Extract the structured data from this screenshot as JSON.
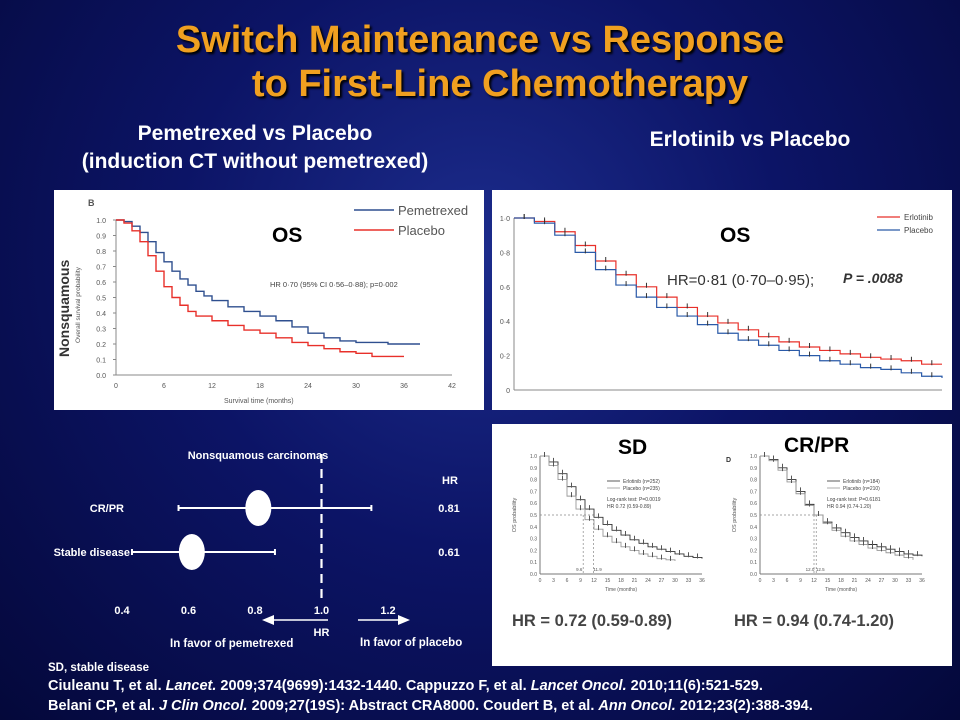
{
  "title": {
    "line1": "Switch Maintenance vs Response",
    "line2": "to First-Line Chemotherapy"
  },
  "left_subtitle": {
    "line1": "Pemetrexed vs Placebo",
    "line2": "(induction CT without pemetrexed)"
  },
  "right_subtitle": "Erlotinib vs Placebo",
  "colors": {
    "title": "#f0a020",
    "pemetrexed": "#2f4f8f",
    "placebo_red": "#e8302a",
    "erlotinib": "#e8302a",
    "placebo_blue": "#2a5aa8"
  },
  "chart_data": [
    {
      "id": "pemetrexed_os",
      "type": "line",
      "panel_label": "B",
      "label": "OS",
      "side_label": "Nonsquamous",
      "ylabel": "Overall survival probability",
      "xlabel": "Survival time (months)",
      "xlim": [
        0,
        42
      ],
      "ylim": [
        0,
        1.0
      ],
      "xticks": [
        0,
        6,
        12,
        18,
        24,
        30,
        36,
        42
      ],
      "yticks": [
        0,
        0.1,
        0.2,
        0.3,
        0.4,
        0.5,
        0.6,
        0.7,
        0.8,
        0.9,
        1.0
      ],
      "legend": [
        "Pemetrexed",
        "Placebo"
      ],
      "annotation": "HR 0·70 (95% CI 0·56–0·88); p=0·002",
      "series": [
        {
          "name": "Pemetrexed",
          "color": "#2f4f8f",
          "x": [
            0,
            1,
            2,
            3,
            4,
            5,
            6,
            7,
            8,
            9,
            10,
            11,
            12,
            14,
            16,
            18,
            20,
            22,
            24,
            26,
            28,
            30,
            32,
            34,
            36,
            38
          ],
          "y": [
            1.0,
            0.99,
            0.96,
            0.92,
            0.86,
            0.79,
            0.73,
            0.67,
            0.62,
            0.58,
            0.54,
            0.51,
            0.48,
            0.44,
            0.41,
            0.38,
            0.35,
            0.31,
            0.27,
            0.24,
            0.22,
            0.21,
            0.21,
            0.2,
            0.2,
            0.2
          ]
        },
        {
          "name": "Placebo",
          "color": "#e8302a",
          "x": [
            0,
            1,
            2,
            3,
            4,
            5,
            6,
            7,
            8,
            9,
            10,
            12,
            14,
            16,
            18,
            20,
            22,
            24,
            26,
            28,
            30,
            32,
            34,
            36
          ],
          "y": [
            1.0,
            0.98,
            0.93,
            0.86,
            0.77,
            0.67,
            0.57,
            0.5,
            0.45,
            0.41,
            0.38,
            0.35,
            0.32,
            0.29,
            0.27,
            0.24,
            0.21,
            0.19,
            0.17,
            0.15,
            0.14,
            0.12,
            0.12,
            0.12
          ]
        }
      ]
    },
    {
      "id": "erlotinib_os",
      "type": "line",
      "label": "OS",
      "xlim": [
        0,
        42
      ],
      "ylim": [
        0,
        1.0
      ],
      "yticks": [
        "0",
        "0·2",
        "0·4",
        "0·6",
        "0·8",
        "1·0"
      ],
      "legend": [
        "Erlotinib",
        "Placebo"
      ],
      "annotation": "HR=0·81 (0·70–0·95);",
      "p_value": "P = .0088",
      "series": [
        {
          "name": "Erlotinib",
          "color": "#e8302a",
          "x": [
            0,
            2,
            4,
            6,
            8,
            10,
            12,
            14,
            16,
            18,
            20,
            22,
            24,
            26,
            28,
            30,
            32,
            34,
            36,
            38,
            40,
            42
          ],
          "y": [
            1.0,
            0.98,
            0.92,
            0.84,
            0.75,
            0.67,
            0.6,
            0.54,
            0.48,
            0.43,
            0.39,
            0.35,
            0.31,
            0.28,
            0.25,
            0.23,
            0.21,
            0.19,
            0.18,
            0.17,
            0.15,
            0.15
          ]
        },
        {
          "name": "Placebo",
          "color": "#2a5aa8",
          "x": [
            0,
            2,
            4,
            6,
            8,
            10,
            12,
            14,
            16,
            18,
            20,
            22,
            24,
            26,
            28,
            30,
            32,
            34,
            36,
            38,
            40,
            42
          ],
          "y": [
            1.0,
            0.97,
            0.9,
            0.8,
            0.7,
            0.61,
            0.54,
            0.48,
            0.43,
            0.38,
            0.33,
            0.29,
            0.26,
            0.23,
            0.2,
            0.17,
            0.15,
            0.13,
            0.12,
            0.1,
            0.08,
            0.07
          ]
        }
      ]
    },
    {
      "id": "sd_os",
      "type": "line",
      "label": "SD",
      "ylabel": "OS probability",
      "xlabel": "Time (months)",
      "xlim": [
        0,
        36
      ],
      "ylim": [
        0,
        1.0
      ],
      "xticks": [
        0,
        3,
        6,
        9,
        12,
        15,
        18,
        21,
        24,
        27,
        30,
        33,
        36
      ],
      "yticks": [
        "0.0",
        "0.1",
        "0.2",
        "0.3",
        "0.4",
        "0.5",
        "0.6",
        "0.7",
        "0.8",
        "0.9",
        "1.0"
      ],
      "legend": [
        "Erlotinib (n=252)",
        "Placebo (n=235)"
      ],
      "test_text": [
        "Log-rank test: P=0.0019",
        "HR 0.72 (0.59-0.89)"
      ],
      "medians": [
        "9.6",
        "11.9"
      ],
      "hr_text": "HR = 0.72 (0.59-0.89)",
      "series": [
        {
          "name": "Erlotinib (n=252)",
          "color": "#333333",
          "x": [
            0,
            2,
            4,
            6,
            8,
            10,
            12,
            14,
            16,
            18,
            20,
            22,
            24,
            26,
            28,
            30,
            32,
            34,
            36
          ],
          "y": [
            1.0,
            0.95,
            0.85,
            0.74,
            0.63,
            0.55,
            0.48,
            0.42,
            0.37,
            0.33,
            0.29,
            0.26,
            0.23,
            0.21,
            0.19,
            0.17,
            0.15,
            0.14,
            0.13
          ]
        },
        {
          "name": "Placebo (n=235)",
          "color": "#999999",
          "x": [
            0,
            2,
            4,
            6,
            8,
            10,
            12,
            14,
            16,
            18,
            20,
            22,
            24,
            26,
            28,
            30
          ],
          "y": [
            1.0,
            0.92,
            0.8,
            0.66,
            0.55,
            0.46,
            0.38,
            0.32,
            0.27,
            0.23,
            0.2,
            0.17,
            0.15,
            0.13,
            0.12,
            0.11
          ]
        }
      ]
    },
    {
      "id": "crpr_os",
      "type": "line",
      "label": "CR/PR",
      "panel_label": "D",
      "ylabel": "OS probability",
      "xlabel": "Time (months)",
      "xlim": [
        0,
        36
      ],
      "ylim": [
        0,
        1.0
      ],
      "xticks": [
        0,
        3,
        6,
        9,
        12,
        15,
        18,
        21,
        24,
        27,
        30,
        33,
        36
      ],
      "yticks": [
        "0.0",
        "0.1",
        "0.2",
        "0.3",
        "0.4",
        "0.5",
        "0.6",
        "0.7",
        "0.8",
        "0.9",
        "1.0"
      ],
      "legend": [
        "Erlotinib (n=184)",
        "Placebo (n=210)"
      ],
      "test_text": [
        "Log-rank test: P=0.6181",
        "HR 0.94 (0.74-1.20)"
      ],
      "medians": [
        "12.0",
        "12.5"
      ],
      "hr_text": "HR = 0.94 (0.74-1.20)",
      "series": [
        {
          "name": "Erlotinib (n=184)",
          "color": "#333333",
          "x": [
            0,
            2,
            4,
            6,
            8,
            10,
            12,
            14,
            16,
            18,
            20,
            22,
            24,
            26,
            28,
            30,
            32,
            34,
            36
          ],
          "y": [
            1.0,
            0.97,
            0.9,
            0.8,
            0.7,
            0.59,
            0.5,
            0.44,
            0.39,
            0.35,
            0.31,
            0.28,
            0.25,
            0.23,
            0.21,
            0.19,
            0.17,
            0.16,
            0.15
          ]
        },
        {
          "name": "Placebo (n=210)",
          "color": "#999999",
          "x": [
            0,
            2,
            4,
            6,
            8,
            10,
            12,
            14,
            16,
            18,
            20,
            22,
            24,
            26,
            28,
            30,
            32,
            34
          ],
          "y": [
            1.0,
            0.96,
            0.88,
            0.78,
            0.68,
            0.58,
            0.5,
            0.43,
            0.37,
            0.32,
            0.28,
            0.25,
            0.22,
            0.2,
            0.18,
            0.16,
            0.14,
            0.12
          ]
        }
      ]
    },
    {
      "id": "forest",
      "type": "forest",
      "title": "Nonsquamous  carcinomas",
      "hr_header": "HR",
      "xlabel": "HR",
      "xticks": [
        "0.4",
        "0.6",
        "0.8",
        "1.0",
        "1.2"
      ],
      "xlim": [
        0.4,
        1.2
      ],
      "favor_left": "In favor of pemetrexed",
      "favor_right": "In favor of placebo",
      "rows": [
        {
          "label": "CR/PR",
          "hr": 0.81,
          "hr_label": "0.81",
          "lo": 0.57,
          "hi": 1.15
        },
        {
          "label": "Stable disease",
          "hr": 0.61,
          "hr_label": "0.61",
          "lo": 0.43,
          "hi": 0.86
        }
      ],
      "footnote": "SD, stable disease"
    }
  ],
  "citations": {
    "line1": [
      "Ciuleanu T, et al. ",
      "Lancet.",
      " 2009;374(9699):1432-1440. Cappuzzo F, et al. ",
      "Lancet Oncol.",
      " 2010;11(6):521-529."
    ],
    "line2": [
      "Belani CP, et al. ",
      "J Clin Oncol.",
      " 2009;27(19S): Abstract CRA8000. Coudert B, et al. ",
      "Ann Oncol.",
      " 2012;23(2):388-394."
    ]
  }
}
